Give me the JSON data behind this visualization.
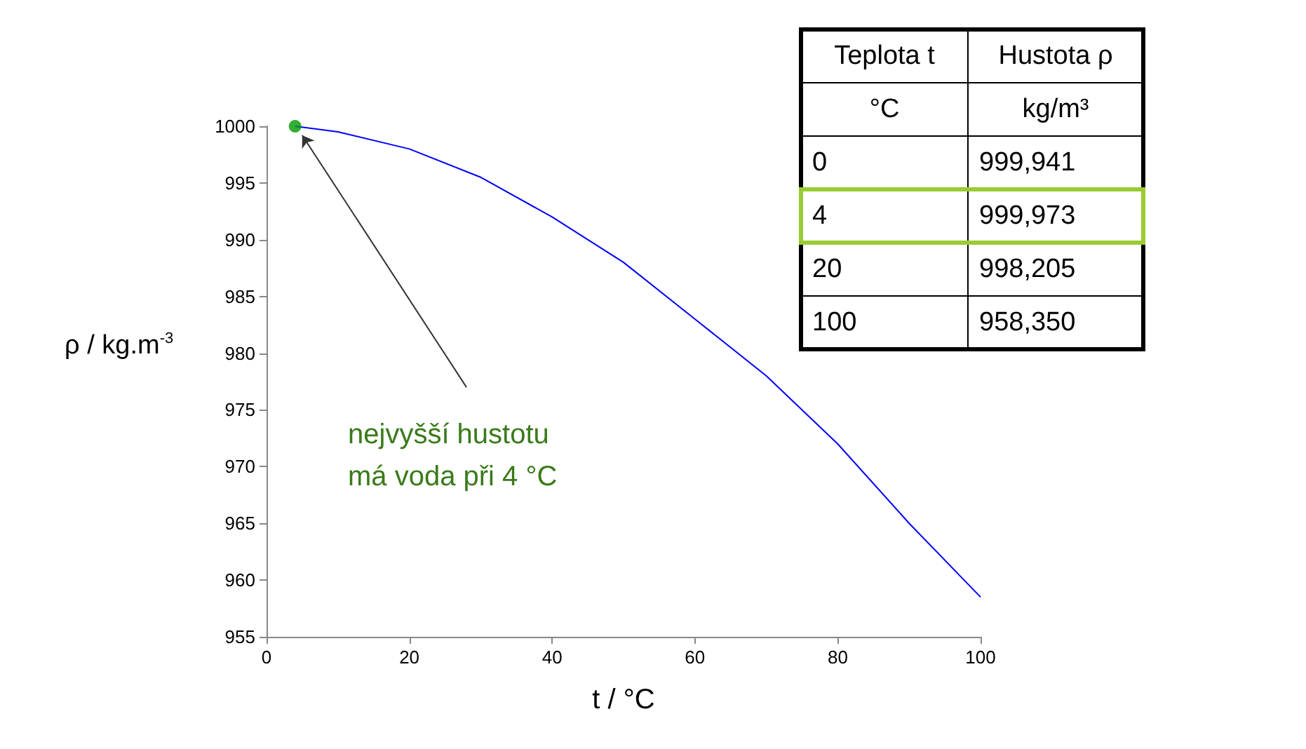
{
  "chart_data": {
    "type": "line",
    "xlabel": "t / °C",
    "ylabel": "ρ / kg.m$^{-3}$",
    "xlim": [
      0,
      100
    ],
    "xticks": [
      0,
      20,
      40,
      60,
      80,
      100
    ],
    "ylim": [
      955,
      1000
    ],
    "yticks": [
      955,
      960,
      965,
      970,
      975,
      980,
      985,
      990,
      995,
      1000
    ],
    "grid": false,
    "series": [
      {
        "color": "#0000ff",
        "x": [
          4,
          10,
          20,
          30,
          40,
          50,
          60,
          70,
          80,
          90,
          100
        ],
        "values": [
          1000,
          999.5,
          998,
          995.5,
          992,
          988,
          983,
          978,
          972,
          965,
          958.5
        ]
      },
      {
        "type": "scatter",
        "color": "#009900",
        "x": [
          4
        ],
        "values": [
          1000
        ]
      }
    ],
    "annotations": [
      {
        "text": "nejvyšší hustotu\nmá voda při 4 °C",
        "x": 4,
        "y": 1000
      },
      "Teplota t",
      "Hustota ρ",
      "°C",
      "kg/m³",
      "0",
      "999,941",
      "4",
      "999,973",
      "20",
      "998,205",
      "100",
      "958,350"
    ]
  }
}
